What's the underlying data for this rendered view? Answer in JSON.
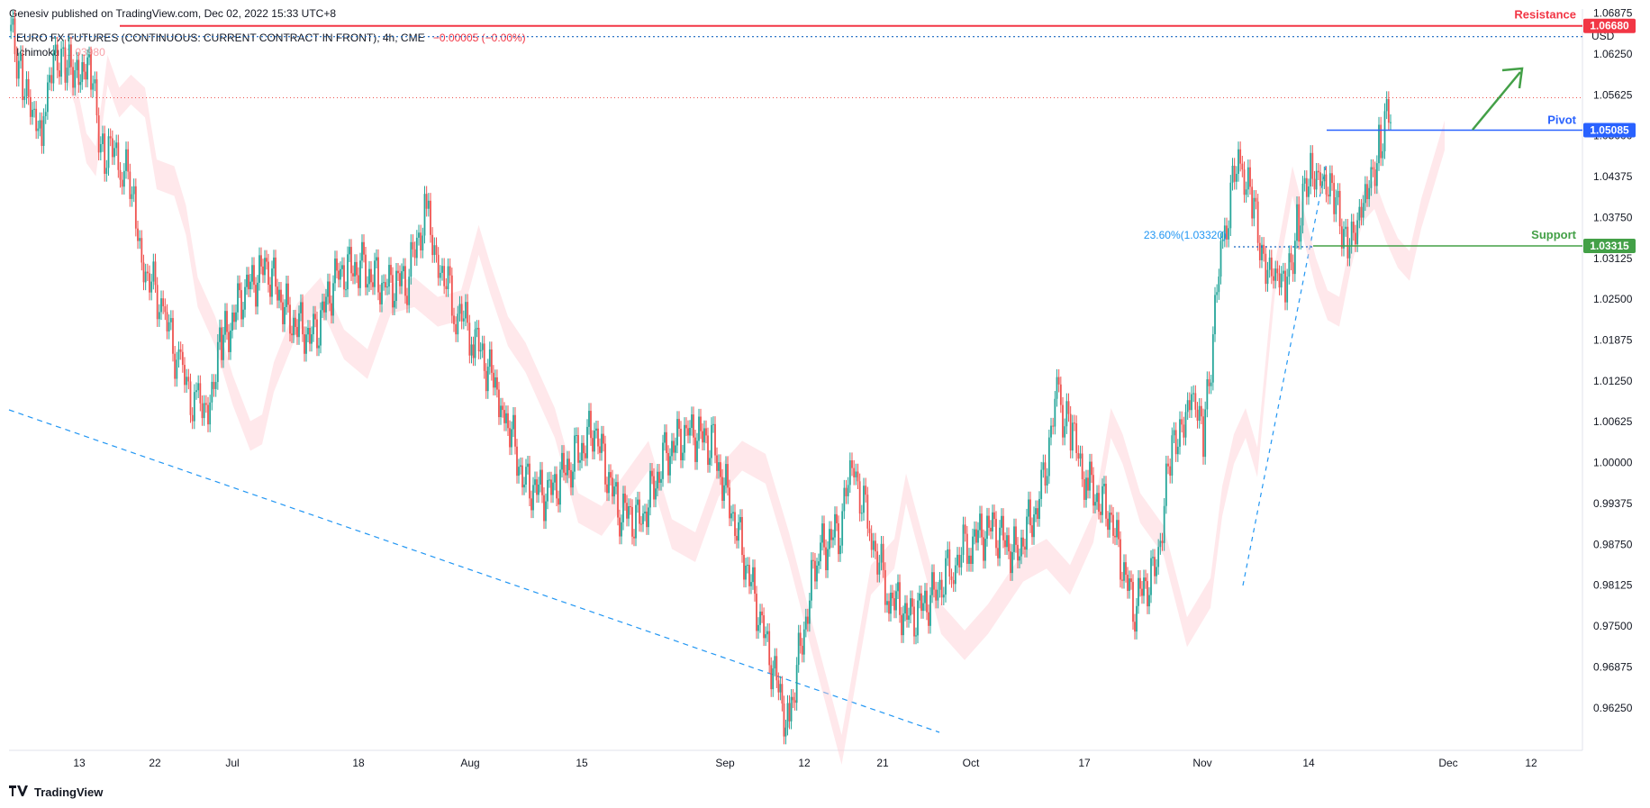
{
  "header": {
    "published": "Genesiv published on TradingView.com, Dec 02, 2022 15:33 UTC+8",
    "symbol": "EURO FX FUTURES (CONTINUOUS: CURRENT CONTRACT IN FRONT), 4h, CME",
    "change": "−0.00005 (−0.00%)",
    "indicator": "Ichimoku",
    "indicator_value": "1.03980"
  },
  "footer": {
    "brand": "TradingView",
    "logo_icon": "tradingview-logo-icon"
  },
  "colors": {
    "up": "#26a69a",
    "down": "#ef5350",
    "resistance": "#f23645",
    "pivot": "#2962ff",
    "support": "#43a047",
    "cloud_green": "#c8e6c9",
    "cloud_red": "#ffcdd2",
    "dashed_blue": "#2196f3",
    "arrow": "#43a047"
  },
  "chart_data": {
    "type": "candlestick",
    "currency": "USD",
    "interval": "4h",
    "ylim": [
      0.956,
      1.068
    ],
    "y_ticks": [
      "1.06875",
      "1.06250",
      "1.05625",
      "1.05000",
      "1.04375",
      "1.03750",
      "1.03125",
      "1.02500",
      "1.01875",
      "1.01250",
      "1.00625",
      "1.00000",
      "0.99375",
      "0.98750",
      "0.98125",
      "0.97500",
      "0.96875",
      "0.96250"
    ],
    "x_ticks": [
      "13",
      "22",
      "Jul",
      "18",
      "Aug",
      "15",
      "Sep",
      "12",
      "21",
      "Oct",
      "17",
      "Nov",
      "14",
      "Dec",
      "12"
    ],
    "levels": [
      {
        "name": "Resistance",
        "value": 1.0668,
        "label": "1.06680",
        "color": "#f23645"
      },
      {
        "name": "Pivot",
        "value": 1.05085,
        "label": "1.05085",
        "color": "#2962ff"
      },
      {
        "name": "Support",
        "value": 1.03315,
        "label": "1.03315",
        "color": "#43a047"
      }
    ],
    "fib": {
      "label": "23.60%(1.03320)",
      "value": 1.0332
    },
    "grid": false,
    "path": [
      [
        0,
        1.066
      ],
      [
        10,
        1.061
      ],
      [
        20,
        1.052
      ],
      [
        28,
        1.05
      ],
      [
        38,
        1.064
      ],
      [
        48,
        1.059
      ],
      [
        58,
        1.061
      ],
      [
        70,
        1.059
      ],
      [
        80,
        1.048
      ],
      [
        95,
        1.047
      ],
      [
        105,
        1.041
      ],
      [
        115,
        1.03
      ],
      [
        130,
        1.024
      ],
      [
        145,
        1.015
      ],
      [
        160,
        1.008
      ],
      [
        170,
        1.009
      ],
      [
        180,
        1.017
      ],
      [
        200,
        1.026
      ],
      [
        220,
        1.03
      ],
      [
        240,
        1.022
      ],
      [
        260,
        1.019
      ],
      [
        280,
        1.029
      ],
      [
        300,
        1.03
      ],
      [
        320,
        1.027
      ],
      [
        340,
        1.028
      ],
      [
        355,
        1.038
      ],
      [
        365,
        1.032
      ],
      [
        380,
        1.024
      ],
      [
        395,
        1.02
      ],
      [
        420,
        1.01
      ],
      [
        440,
        0.997
      ],
      [
        460,
        0.995
      ],
      [
        480,
        1.0
      ],
      [
        500,
        1.005
      ],
      [
        520,
        0.993
      ],
      [
        540,
        0.991
      ],
      [
        560,
        1.001
      ],
      [
        580,
        1.005
      ],
      [
        600,
        1.003
      ],
      [
        620,
        0.991
      ],
      [
        640,
        0.977
      ],
      [
        665,
        0.96
      ],
      [
        690,
        0.986
      ],
      [
        710,
        0.99
      ],
      [
        720,
        1.0
      ],
      [
        735,
        0.99
      ],
      [
        750,
        0.98
      ],
      [
        770,
        0.976
      ],
      [
        790,
        0.98
      ],
      [
        805,
        0.984
      ],
      [
        820,
        0.988
      ],
      [
        840,
        0.99
      ],
      [
        860,
        0.986
      ],
      [
        880,
        0.994
      ],
      [
        895,
        1.01
      ],
      [
        905,
        1.006
      ],
      [
        920,
        0.997
      ],
      [
        940,
        0.992
      ],
      [
        960,
        0.978
      ],
      [
        980,
        0.984
      ],
      [
        990,
        0.998
      ],
      [
        1000,
        1.006
      ],
      [
        1010,
        1.01
      ],
      [
        1020,
        1.004
      ],
      [
        1035,
        1.032
      ],
      [
        1050,
        1.047
      ],
      [
        1060,
        1.04
      ],
      [
        1070,
        1.033
      ],
      [
        1080,
        1.028
      ],
      [
        1090,
        1.027
      ],
      [
        1100,
        1.036
      ],
      [
        1110,
        1.043
      ],
      [
        1120,
        1.045
      ],
      [
        1130,
        1.04
      ],
      [
        1140,
        1.036
      ],
      [
        1150,
        1.034
      ],
      [
        1160,
        1.042
      ],
      [
        1170,
        1.048
      ],
      [
        1180,
        1.054
      ]
    ]
  }
}
